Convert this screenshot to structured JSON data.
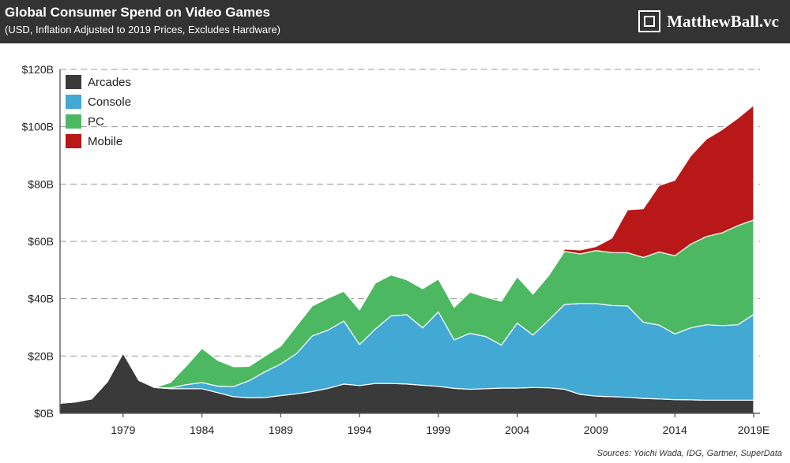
{
  "header": {
    "title": "Global Consumer Spend on Video Games",
    "subtitle": "(USD, Inflation Adjusted to 2019 Prices, Excludes Hardware)",
    "brand": "MatthewBall.vc"
  },
  "footer": {
    "sources": "Sources: Yoichi Wada, IDG, Gartner, SuperData"
  },
  "colors": {
    "header_bg": "#333333",
    "Arcades": "#3a3a3a",
    "Console": "#42a8d4",
    "PC": "#4db862",
    "Mobile": "#b81817"
  },
  "chart_data": {
    "type": "area",
    "stacked": true,
    "x": [
      1975,
      1976,
      1977,
      1978,
      1979,
      1980,
      1981,
      1982,
      1983,
      1984,
      1985,
      1986,
      1987,
      1988,
      1989,
      1990,
      1991,
      1992,
      1993,
      1994,
      1995,
      1996,
      1997,
      1998,
      1999,
      2000,
      2001,
      2002,
      2003,
      2004,
      2005,
      2006,
      2007,
      2008,
      2009,
      2010,
      2011,
      2012,
      2013,
      2014,
      2015,
      2016,
      2017,
      2018,
      2019
    ],
    "x_tick_labels": [
      "1979",
      "1984",
      "1989",
      "1994",
      "1999",
      "2004",
      "2009",
      "2014",
      "2019E"
    ],
    "x_tick_positions": [
      1979,
      1984,
      1989,
      1994,
      1999,
      2004,
      2009,
      2014,
      2019
    ],
    "y_tick_labels": [
      "$0B",
      "$20B",
      "$40B",
      "$60B",
      "$80B",
      "$100B",
      "$120B"
    ],
    "y_tick_values": [
      0,
      20,
      40,
      60,
      80,
      100,
      120
    ],
    "ylim": [
      0,
      120
    ],
    "xlim": [
      1975,
      2019.4
    ],
    "grid": true,
    "legend_position": "top-left",
    "series": [
      {
        "name": "Arcades",
        "values": [
          3.5,
          4,
          5,
          11,
          21,
          11.5,
          9,
          8.6,
          8.6,
          8.6,
          7.2,
          5.8,
          5.4,
          5.5,
          6.2,
          6.8,
          7.6,
          8.7,
          10.2,
          9.7,
          10.4,
          10.4,
          10.2,
          9.8,
          9.4,
          8.7,
          8.4,
          8.6,
          8.8,
          8.8,
          9.0,
          8.9,
          8.4,
          6.6,
          6.0,
          5.8,
          5.6,
          5.2,
          5.0,
          4.8,
          4.7,
          4.6,
          4.6,
          4.6,
          4.6
        ]
      },
      {
        "name": "Console",
        "values": [
          0,
          0,
          0,
          0,
          0,
          0,
          0,
          0.2,
          1.4,
          2.1,
          2.3,
          3.5,
          6.0,
          9.0,
          11.0,
          14.0,
          19.4,
          20.3,
          22.0,
          14.3,
          19.0,
          23.6,
          24.2,
          20.0,
          26.0,
          16.9,
          19.5,
          18.2,
          15.0,
          22.7,
          18.3,
          23.6,
          29.6,
          31.7,
          32.3,
          31.8,
          31.9,
          26.6,
          25.8,
          22.9,
          25.1,
          26.3,
          26.0,
          26.3,
          29.9
        ]
      },
      {
        "name": "PC",
        "values": [
          0,
          0,
          0,
          0,
          0,
          0,
          0,
          2.0,
          6.5,
          12.0,
          9.0,
          7.0,
          5.0,
          5.5,
          6.3,
          9.7,
          10.5,
          11.2,
          10.4,
          12.1,
          16.1,
          14.3,
          12.2,
          13.7,
          11.5,
          11.4,
          14.4,
          13.8,
          15.3,
          16.2,
          14.3,
          15.6,
          18.5,
          17.3,
          18.5,
          18.5,
          18.5,
          22.6,
          25.5,
          27.3,
          29.2,
          30.8,
          32.4,
          34.6,
          33.0
        ]
      },
      {
        "name": "Mobile",
        "values": [
          0,
          0,
          0,
          0,
          0,
          0,
          0,
          0,
          0,
          0,
          0,
          0,
          0,
          0,
          0,
          0,
          0,
          0,
          0,
          0,
          0,
          0,
          0,
          0,
          0,
          0,
          0,
          0,
          0,
          0,
          0,
          0,
          0.8,
          1.4,
          1.4,
          5.0,
          15.0,
          17.0,
          23.2,
          26.3,
          30.8,
          34.0,
          36.0,
          37.5,
          40.0
        ]
      }
    ]
  }
}
